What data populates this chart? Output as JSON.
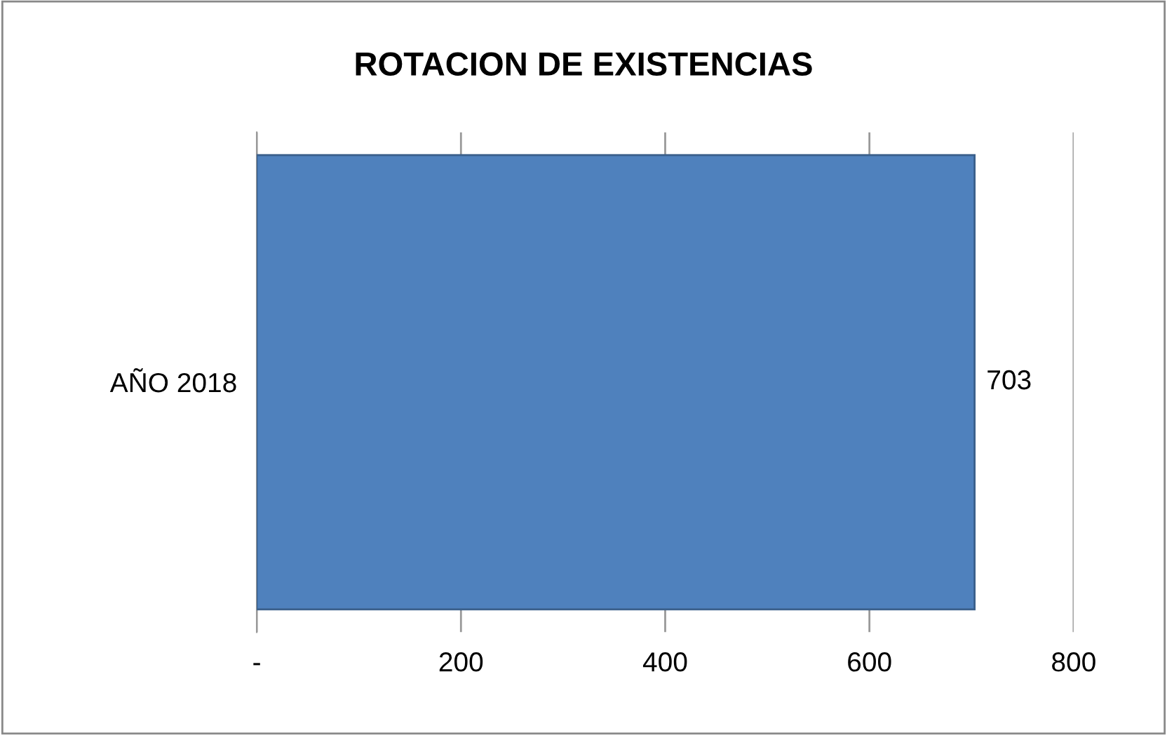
{
  "chart_data": {
    "type": "bar",
    "orientation": "horizontal",
    "title": "ROTACION DE EXISTENCIAS",
    "categories": [
      "AÑO 2018"
    ],
    "values": [
      703
    ],
    "color": "#4f81bd",
    "xlim": [
      0,
      800
    ],
    "xticks": [
      {
        "value": 0,
        "label": "-"
      },
      200,
      400,
      600,
      800
    ],
    "grid": "x",
    "data_labels": true
  }
}
